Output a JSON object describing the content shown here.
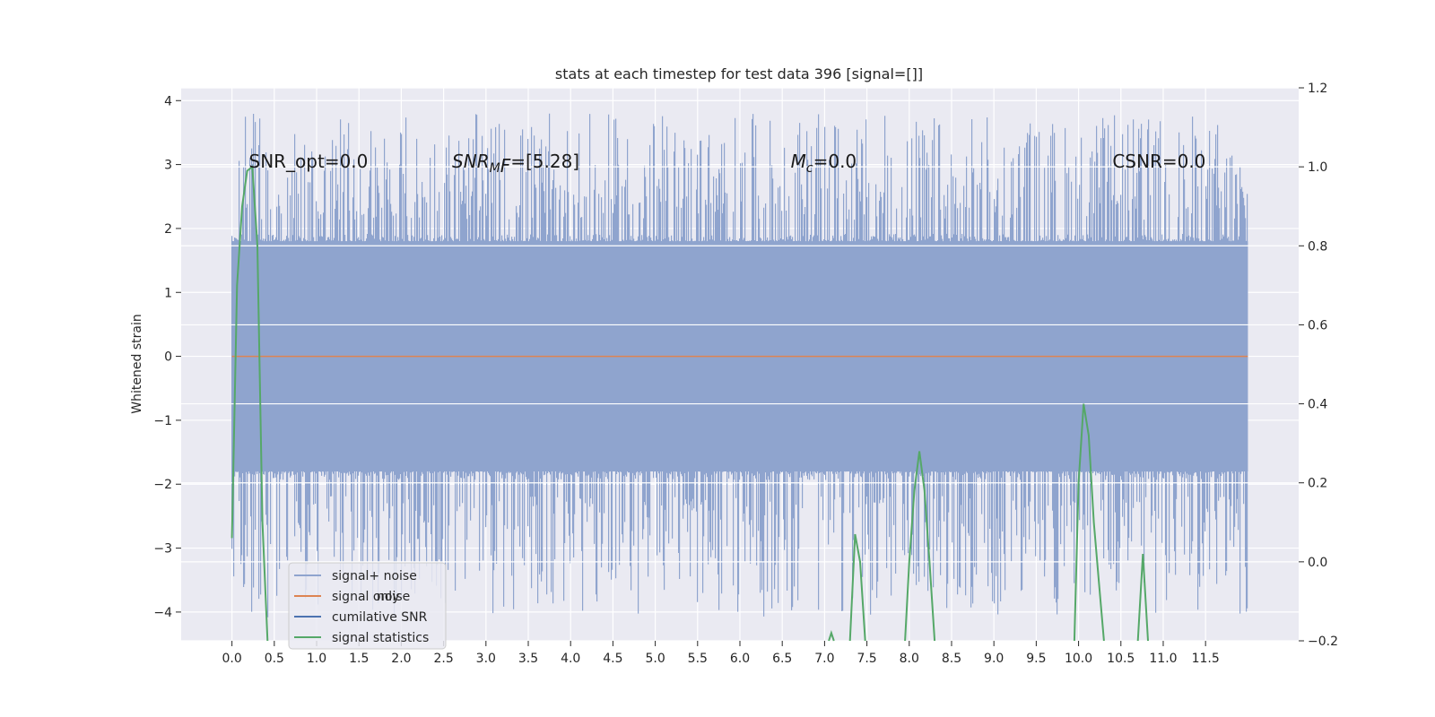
{
  "colors": {
    "background": "#ffffff",
    "plot_bg": "#eaeaf2",
    "grid": "#ffffff",
    "signal_noise": "#8fa4ce",
    "signal_only": "#dd8452",
    "cumulative_snr": "#4c72b0",
    "signal_statistics": "#55a868",
    "text": "#262626"
  },
  "chart_data": {
    "type": "line",
    "title": "stats at each timestep for test data 396 [signal=[]]",
    "ylabel": "Whitened strain",
    "xlabel": "",
    "xlim": [
      -0.6,
      12.6
    ],
    "ylim": [
      -4.45,
      4.2
    ],
    "y2lim": [
      -0.2,
      1.2
    ],
    "x_ticks": [
      0.0,
      0.5,
      1.0,
      1.5,
      2.0,
      2.5,
      3.0,
      3.5,
      4.0,
      4.5,
      5.0,
      5.5,
      6.0,
      6.5,
      7.0,
      7.5,
      8.0,
      8.5,
      9.0,
      9.5,
      10.0,
      10.5,
      11.0,
      11.5
    ],
    "x_tick_labels": [
      "0.0",
      "0.5",
      "1.0",
      "1.5",
      "2.0",
      "2.5",
      "3.0",
      "3.5",
      "4.0",
      "4.5",
      "5.0",
      "5.5",
      "6.0",
      "6.5",
      "7.0",
      "7.5",
      "8.0",
      "8.5",
      "9.0",
      "9.5",
      "10.0",
      "10.5",
      "11.0",
      "11.5"
    ],
    "y_ticks": [
      4,
      3,
      2,
      1,
      0,
      -1,
      -2,
      -3,
      -4
    ],
    "y_tick_labels": [
      "4",
      "3",
      "2",
      "1",
      "0",
      "−1",
      "−2",
      "−3",
      "−4"
    ],
    "y2_ticks": [
      1.2,
      1.0,
      0.8,
      0.6,
      0.4,
      0.2,
      0.0,
      -0.2
    ],
    "y2_tick_labels": [
      "1.2",
      "1.0",
      "0.8",
      "0.6",
      "0.4",
      "0.2",
      "0.0",
      "−0.2"
    ],
    "grid": true,
    "legend_position": "lower-left",
    "series": [
      {
        "name": "signal+ noise",
        "axis": "left",
        "noise_band": {
          "x_range": [
            0.0,
            12.0
          ],
          "core": [
            -1.8,
            1.8
          ],
          "extremes": [
            -4.1,
            3.8
          ]
        }
      },
      {
        "name": "signal only",
        "axis": "left",
        "x": [
          0.0,
          12.0
        ],
        "y": [
          0.0,
          0.0
        ]
      },
      {
        "name": "cumilative SNR",
        "axis": "right",
        "x": [],
        "y": []
      },
      {
        "name": "signal statistics",
        "axis": "right",
        "x": [
          0.0,
          0.06,
          0.12,
          0.18,
          0.24,
          0.3,
          0.36,
          0.42,
          7.05,
          7.08,
          7.11,
          7.3,
          7.36,
          7.42,
          7.48,
          7.95,
          8.0,
          8.06,
          8.12,
          8.18,
          8.24,
          8.3,
          9.95,
          10.0,
          10.06,
          10.12,
          10.18,
          10.24,
          10.3,
          10.7,
          10.76,
          10.82
        ],
        "y": [
          0.06,
          0.7,
          0.9,
          0.99,
          1.0,
          0.8,
          0.1,
          -0.2,
          -0.2,
          -0.18,
          -0.2,
          -0.2,
          0.07,
          0.0,
          -0.2,
          -0.2,
          0.0,
          0.18,
          0.28,
          0.18,
          0.0,
          -0.2,
          -0.2,
          0.2,
          0.4,
          0.32,
          0.1,
          -0.05,
          -0.2,
          -0.2,
          0.02,
          -0.2
        ]
      }
    ],
    "annotations": [
      {
        "text_plain": "SNR_opt=0.0",
        "x": 0.2,
        "y": 2.95
      },
      {
        "text_pre": "SNR",
        "text_sub": "M",
        "text_post": "F=[5.28]",
        "italic": "SNR M F",
        "x": 2.6,
        "y": 2.95
      },
      {
        "text_pre": "M",
        "text_sub": "c",
        "text_post": "=0.0",
        "x": 6.6,
        "y": 2.95
      },
      {
        "text_plain": "CSNR=0.0",
        "x": 10.4,
        "y": 2.95
      }
    ],
    "legend_entries": [
      "signal+ noise",
      "signal only",
      "cumilative SNR",
      "signal statistics"
    ],
    "legend_ghost_text": "noise"
  }
}
